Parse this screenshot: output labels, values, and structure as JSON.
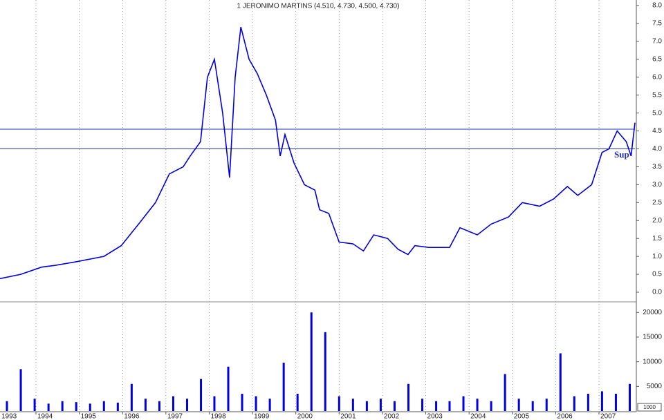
{
  "chart_data": [
    {
      "type": "line",
      "title": "1 JERONIMO MARTINS (4.510, 4.730, 4.500, 4.730)",
      "annotation": "Sup",
      "color": "#0000e0",
      "reference_lines": [
        4.55,
        4.0
      ],
      "reference_color": "#2030c0",
      "xlim": [
        1993.17,
        2007.83
      ],
      "ylim": [
        0,
        8
      ],
      "yticks": [
        {
          "value": 0,
          "label": "0.0"
        },
        {
          "value": 0.5,
          "label": "0.5"
        },
        {
          "value": 1,
          "label": "1.0"
        },
        {
          "value": 1.5,
          "label": "1.5"
        },
        {
          "value": 2,
          "label": "2.0"
        },
        {
          "value": 2.5,
          "label": "2.5"
        },
        {
          "value": 3,
          "label": "3.0"
        },
        {
          "value": 3.5,
          "label": "3.5"
        },
        {
          "value": 4,
          "label": "4.0"
        },
        {
          "value": 4.5,
          "label": "4.5"
        },
        {
          "value": 5,
          "label": "5.0"
        },
        {
          "value": 5.5,
          "label": "5.5"
        },
        {
          "value": 6,
          "label": "6.0"
        },
        {
          "value": 6.5,
          "label": "6.5"
        },
        {
          "value": 7,
          "label": "7.0"
        },
        {
          "value": 7.5,
          "label": "7.5"
        },
        {
          "value": 8,
          "label": "8.0"
        }
      ],
      "x": [
        1993.17,
        1993.65,
        1994.13,
        1994.45,
        1994.93,
        1995.57,
        1995.97,
        1996.37,
        1996.76,
        1997.08,
        1997.4,
        1997.56,
        1997.8,
        1997.96,
        1998.12,
        1998.31,
        1998.47,
        1998.6,
        1998.73,
        1998.92,
        1999.11,
        1999.32,
        1999.53,
        1999.64,
        1999.75,
        1999.96,
        2000.2,
        2000.44,
        2000.55,
        2000.76,
        2001.0,
        2001.32,
        2001.56,
        2001.8,
        2002.12,
        2002.36,
        2002.59,
        2002.75,
        2003.07,
        2003.55,
        2003.79,
        2004.19,
        2004.51,
        2004.91,
        2005.23,
        2005.63,
        2005.95,
        2006.27,
        2006.51,
        2006.83,
        2007.07,
        2007.23,
        2007.42,
        2007.63,
        2007.74,
        2007.83
      ],
      "values": [
        0.38,
        0.5,
        0.7,
        0.75,
        0.85,
        1.0,
        1.3,
        1.9,
        2.5,
        3.3,
        3.5,
        3.8,
        4.2,
        6.0,
        6.5,
        5.0,
        3.2,
        6.0,
        7.4,
        6.5,
        6.1,
        5.5,
        4.8,
        3.8,
        4.4,
        3.6,
        3.0,
        2.85,
        2.3,
        2.2,
        1.4,
        1.35,
        1.15,
        1.6,
        1.5,
        1.2,
        1.05,
        1.3,
        1.25,
        1.25,
        1.8,
        1.6,
        1.9,
        2.1,
        2.5,
        2.4,
        2.6,
        2.95,
        2.7,
        3.0,
        3.9,
        4.0,
        4.5,
        4.2,
        3.8,
        4.73
      ]
    },
    {
      "type": "bar",
      "unit_label": "1000",
      "color": "#0000e0",
      "xlim": [
        1993.17,
        2007.83
      ],
      "xticks": [
        1993,
        1994,
        1995,
        1996,
        1997,
        1998,
        1999,
        2000,
        2001,
        2002,
        2003,
        2004,
        2005,
        2006,
        2007
      ],
      "ylim": [
        0,
        22000
      ],
      "yticks": [
        5000,
        10000,
        15000,
        20000
      ],
      "x": [
        1993.33,
        1993.65,
        1993.97,
        1994.29,
        1994.61,
        1994.93,
        1995.25,
        1995.57,
        1995.89,
        1996.21,
        1996.53,
        1996.85,
        1997.17,
        1997.49,
        1997.81,
        1998.12,
        1998.44,
        1998.76,
        1999.08,
        1999.4,
        1999.72,
        2000.04,
        2000.36,
        2000.68,
        2001.0,
        2001.32,
        2001.64,
        2001.96,
        2002.28,
        2002.6,
        2002.92,
        2003.24,
        2003.55,
        2003.87,
        2004.19,
        2004.51,
        2004.83,
        2005.15,
        2005.47,
        2005.79,
        2006.11,
        2006.43,
        2006.75,
        2007.07,
        2007.39,
        2007.71
      ],
      "values": [
        2000,
        8500,
        2500,
        1500,
        2000,
        1800,
        1500,
        2000,
        1700,
        5500,
        2500,
        2000,
        3000,
        2500,
        6500,
        3000,
        9000,
        3500,
        3000,
        2500,
        9800,
        3500,
        20000,
        16000,
        3000,
        2500,
        2000,
        2500,
        2000,
        5500,
        2500,
        2000,
        2000,
        3000,
        2500,
        2000,
        7500,
        2500,
        2000,
        2500,
        11700,
        3000,
        3500,
        4000,
        3500,
        5500
      ]
    }
  ]
}
